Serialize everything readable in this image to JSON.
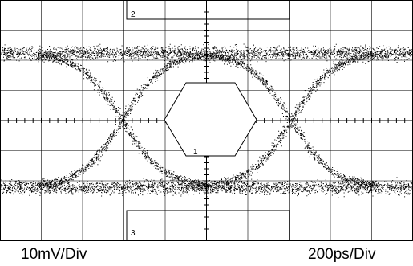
{
  "scope": {
    "mask_labels": [
      "2",
      "1",
      "3"
    ],
    "scale": {
      "vertical": "10mV/Div",
      "horizontal": "200ps/Div"
    }
  },
  "colors": {
    "trace": "#000000",
    "grid": "#000000",
    "background": "#ffffff"
  }
}
